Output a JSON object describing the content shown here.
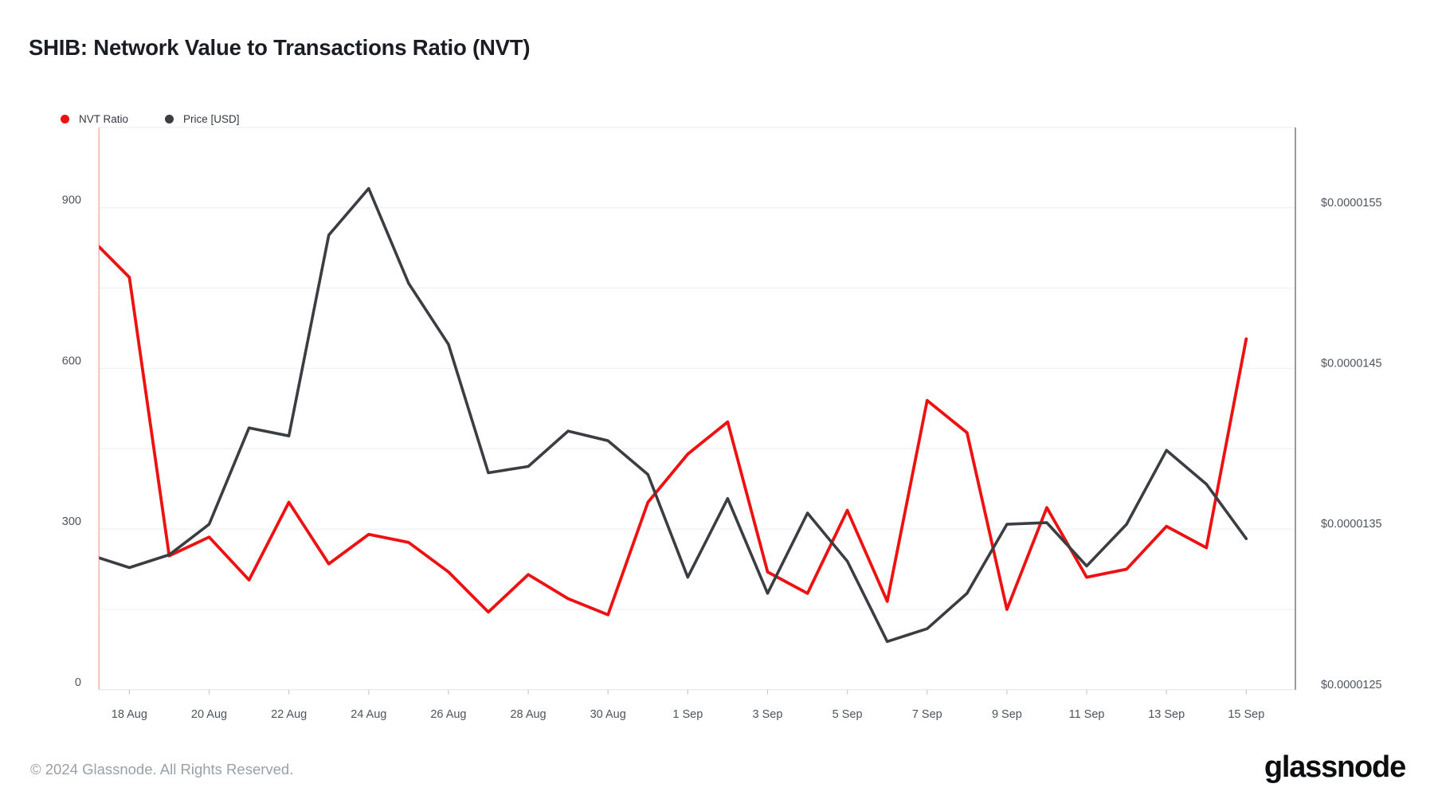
{
  "header": {
    "title": "SHIB: Network Value to Transactions Ratio (NVT)"
  },
  "legend": [
    {
      "label": "NVT Ratio",
      "color": "#ee1111"
    },
    {
      "label": "Price [USD]",
      "color": "#3a3d42"
    }
  ],
  "footer": {
    "copyright": "© 2024 Glassnode. All Rights Reserved.",
    "brand": "glassnode"
  },
  "chart_data": {
    "type": "line",
    "title": "SHIB: Network Value to Transactions Ratio (NVT)",
    "grid": "horizontal",
    "legend_position": "top-left",
    "x_dates": [
      "17 Aug",
      "18 Aug",
      "19 Aug",
      "20 Aug",
      "21 Aug",
      "22 Aug",
      "23 Aug",
      "24 Aug",
      "25 Aug",
      "26 Aug",
      "27 Aug",
      "28 Aug",
      "29 Aug",
      "30 Aug",
      "31 Aug",
      "1 Sep",
      "2 Sep",
      "3 Sep",
      "4 Sep",
      "5 Sep",
      "6 Sep",
      "7 Sep",
      "8 Sep",
      "9 Sep",
      "10 Sep",
      "11 Sep",
      "12 Sep",
      "13 Sep",
      "14 Sep",
      "15 Sep"
    ],
    "x_tick_labels": [
      "18 Aug",
      "20 Aug",
      "22 Aug",
      "24 Aug",
      "26 Aug",
      "28 Aug",
      "30 Aug",
      "1 Sep",
      "3 Sep",
      "5 Sep",
      "7 Sep",
      "9 Sep",
      "11 Sep",
      "13 Sep",
      "15 Sep"
    ],
    "series": [
      {
        "name": "NVT Ratio",
        "axis": "left",
        "color": "#ee1111",
        "values": [
          845,
          770,
          250,
          285,
          205,
          350,
          235,
          290,
          275,
          220,
          145,
          215,
          170,
          140,
          350,
          440,
          500,
          220,
          180,
          335,
          165,
          540,
          480,
          150,
          340,
          210,
          225,
          305,
          265,
          655
        ]
      },
      {
        "name": "Price [USD]",
        "axis": "right",
        "color": "#3a3d42",
        "values": [
          1.334e-05,
          1.326e-05,
          1.334e-05,
          1.353e-05,
          1.413e-05,
          1.408e-05,
          1.533e-05,
          1.562e-05,
          1.503e-05,
          1.465e-05,
          1.385e-05,
          1.389e-05,
          1.411e-05,
          1.405e-05,
          1.384e-05,
          1.32e-05,
          1.369e-05,
          1.31e-05,
          1.36e-05,
          1.33e-05,
          1.28e-05,
          1.288e-05,
          1.31e-05,
          1.353e-05,
          1.354e-05,
          1.327e-05,
          1.353e-05,
          1.399e-05,
          1.378e-05,
          1.344e-05
        ]
      }
    ],
    "left_axis": {
      "tick_labels": [
        "0",
        "300",
        "600",
        "900"
      ],
      "tick_values": [
        0,
        300,
        600,
        900
      ],
      "range": [
        0,
        1050
      ],
      "gridline_step": 150
    },
    "right_axis": {
      "tick_labels": [
        "$0.0000125",
        "$0.0000135",
        "$0.0000145",
        "$0.0000155"
      ],
      "tick_values": [
        1.25e-05,
        1.35e-05,
        1.45e-05,
        1.55e-05
      ],
      "range": [
        1.25e-05,
        1.6e-05
      ]
    },
    "colors": {
      "gridline": "#eceef1",
      "bottom_axis": "#e4e6e9",
      "tick_mark": "#c9ccd2",
      "left_axis_line": "#ffb0b0",
      "right_axis_line": "#6b6f76",
      "axis_text": "#4e545c"
    }
  }
}
